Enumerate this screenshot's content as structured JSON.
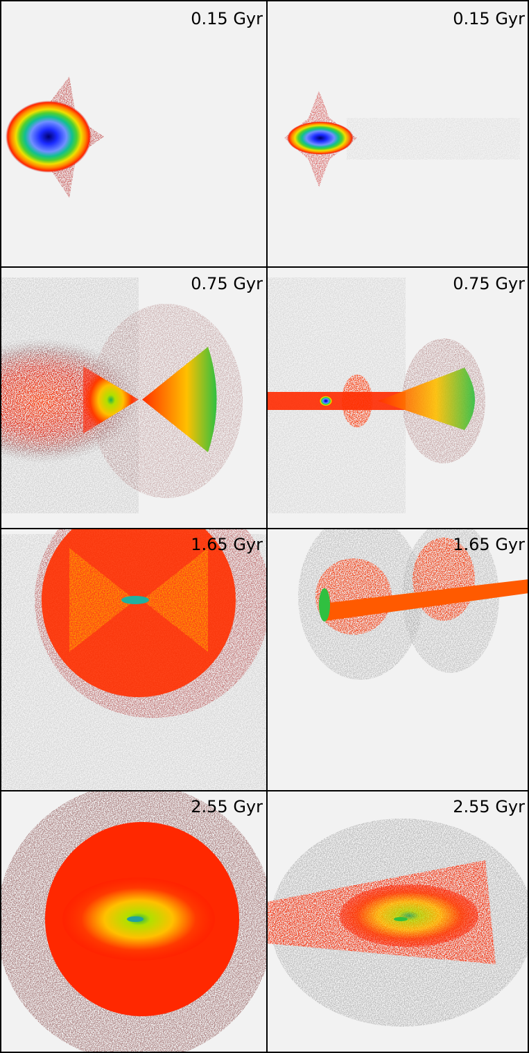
{
  "panels": [
    {
      "label": "0.15 Gyr"
    },
    {
      "label": "0.15 Gyr"
    },
    {
      "label": "0.75 Gyr"
    },
    {
      "label": "0.75 Gyr"
    },
    {
      "label": "1.65 Gyr"
    },
    {
      "label": "1.65 Gyr"
    },
    {
      "label": "2.55 Gyr"
    },
    {
      "label": "2.55 Gyr"
    }
  ]
}
